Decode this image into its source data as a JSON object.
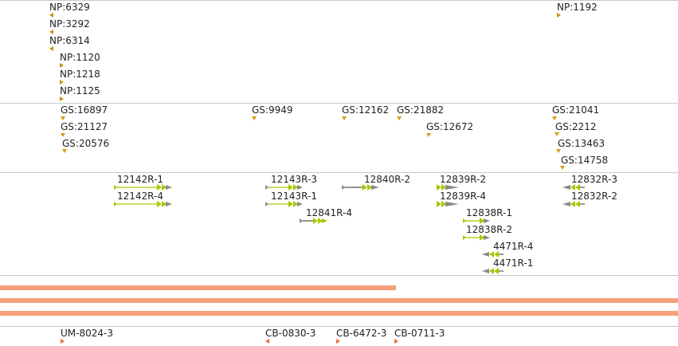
{
  "colors": {
    "np": "#c8900e",
    "gs": "#d99c10",
    "primer_body": "#a8c800",
    "primer_line": "#555555",
    "primer_tail": "#8a8a8a",
    "segment": "#f4a07a",
    "cb": "#ef6d3c",
    "divider": "#c8c8c8"
  },
  "tracks": {
    "np": {
      "features": [
        {
          "label": "NP:6329",
          "dir": "left"
        },
        {
          "label": "NP:3292",
          "dir": "left"
        },
        {
          "label": "NP:6314",
          "dir": "left"
        },
        {
          "label": "NP:1120",
          "dir": "right"
        },
        {
          "label": "NP:1218",
          "dir": "right"
        },
        {
          "label": "NP:1125",
          "dir": "right"
        },
        {
          "label": "NP:1192",
          "dir": "right"
        }
      ]
    },
    "gs": {
      "features": [
        {
          "label": "GS:16897",
          "dir": "right"
        },
        {
          "label": "GS:21127",
          "dir": "right"
        },
        {
          "label": "GS:20576",
          "dir": "right"
        },
        {
          "label": "GS:9949",
          "dir": "right"
        },
        {
          "label": "GS:12162",
          "dir": "right"
        },
        {
          "label": "GS:21882",
          "dir": "right"
        },
        {
          "label": "GS:12672",
          "dir": "right"
        },
        {
          "label": "GS:21041",
          "dir": "right"
        },
        {
          "label": "GS:2212",
          "dir": "right"
        },
        {
          "label": "GS:13463",
          "dir": "right"
        },
        {
          "label": "GS:14758",
          "dir": "right"
        }
      ]
    },
    "primers": {
      "features": [
        {
          "label": "12142R-1",
          "dir": "right"
        },
        {
          "label": "12142R-4",
          "dir": "right"
        },
        {
          "label": "12143R-3",
          "dir": "right"
        },
        {
          "label": "12143R-1",
          "dir": "right"
        },
        {
          "label": "12841R-4",
          "dir": "right"
        },
        {
          "label": "12840R-2",
          "dir": "right"
        },
        {
          "label": "12839R-2",
          "dir": "right"
        },
        {
          "label": "12839R-4",
          "dir": "right"
        },
        {
          "label": "12838R-1",
          "dir": "right"
        },
        {
          "label": "12838R-2",
          "dir": "right"
        },
        {
          "label": "4471R-4",
          "dir": "left"
        },
        {
          "label": "4471R-1",
          "dir": "left"
        },
        {
          "label": "12832R-3",
          "dir": "left"
        },
        {
          "label": "12832R-2",
          "dir": "left"
        }
      ]
    },
    "segments": {
      "count": 3
    },
    "cb": {
      "features": [
        {
          "label": "UM-8024-3",
          "dir": "right"
        },
        {
          "label": "CB-0830-3",
          "dir": "left"
        },
        {
          "label": "CB-6472-3",
          "dir": "right"
        },
        {
          "label": "CB-0711-3",
          "dir": "right"
        }
      ]
    }
  }
}
